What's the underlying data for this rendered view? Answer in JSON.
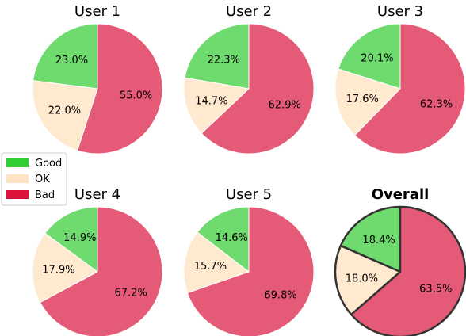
{
  "colors": {
    "good_legend": "#32cd32",
    "ok_legend": "#ffe4c4",
    "bad_legend": "#dc143c",
    "good_fill": "#6fdb6f",
    "ok_fill": "#ffe9cf",
    "bad_fill": "#e55a77",
    "edge": "#ffffff",
    "overall_edge": "#333333"
  },
  "legend": {
    "items": [
      {
        "label": "Good",
        "color": "#32cd32"
      },
      {
        "label": "OK",
        "color": "#ffe4c4"
      },
      {
        "label": "Bad",
        "color": "#dc143c"
      }
    ]
  },
  "chart_data": [
    {
      "type": "pie",
      "title": "User 1",
      "labels": [
        "Good",
        "OK",
        "Bad"
      ],
      "values": [
        23.0,
        22.0,
        55.0
      ],
      "value_labels": [
        "23.0%",
        "22.0%",
        "55.0%"
      ]
    },
    {
      "type": "pie",
      "title": "User 2",
      "labels": [
        "Good",
        "OK",
        "Bad"
      ],
      "values": [
        22.3,
        14.7,
        62.9
      ],
      "value_labels": [
        "22.3%",
        "14.7%",
        "62.9%"
      ]
    },
    {
      "type": "pie",
      "title": "User 3",
      "labels": [
        "Good",
        "OK",
        "Bad"
      ],
      "values": [
        20.1,
        17.6,
        62.3
      ],
      "value_labels": [
        "20.1%",
        "17.6%",
        "62.3%"
      ]
    },
    {
      "type": "pie",
      "title": "User 4",
      "labels": [
        "Good",
        "OK",
        "Bad"
      ],
      "values": [
        14.9,
        17.9,
        67.2
      ],
      "value_labels": [
        "14.9%",
        "17.9%",
        "67.2%"
      ]
    },
    {
      "type": "pie",
      "title": "User 5",
      "labels": [
        "Good",
        "OK",
        "Bad"
      ],
      "values": [
        14.6,
        15.7,
        69.8
      ],
      "value_labels": [
        "14.6%",
        "15.7%",
        "69.8%"
      ]
    },
    {
      "type": "pie",
      "title": "Overall",
      "labels": [
        "Good",
        "OK",
        "Bad"
      ],
      "values": [
        18.4,
        18.0,
        63.5
      ],
      "value_labels": [
        "18.4%",
        "18.0%",
        "63.5%"
      ]
    }
  ]
}
